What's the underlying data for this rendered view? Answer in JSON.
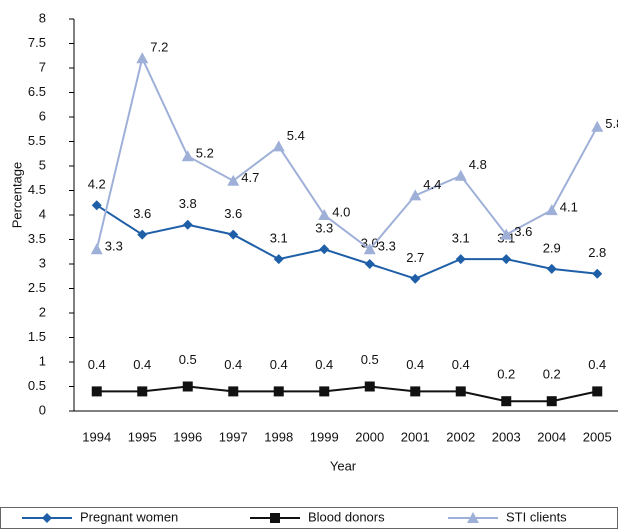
{
  "chart_data": {
    "type": "line",
    "x_label": "Year",
    "y_label": "Percentage",
    "categories": [
      "1994",
      "1995",
      "1996",
      "1997",
      "1998",
      "1999",
      "2000",
      "2001",
      "2002",
      "2003",
      "2004",
      "2005"
    ],
    "ylim": [
      0,
      8
    ],
    "yticks": [
      0,
      0.5,
      1,
      1.5,
      2,
      2.5,
      3,
      3.5,
      4,
      4.5,
      5,
      5.5,
      6,
      6.5,
      7,
      7.5,
      8
    ],
    "grid": false,
    "series": [
      {
        "name": "Pregnant women",
        "color": "#1f5fa8",
        "marker": "diamond",
        "values": [
          4.2,
          3.6,
          3.8,
          3.6,
          3.1,
          3.3,
          3.0,
          2.7,
          3.1,
          3.1,
          2.9,
          2.8
        ],
        "value_labels": [
          "4.2",
          "3.6",
          "3.8",
          "3.6",
          "3.1",
          "3.3",
          "3.0",
          "2.7",
          "3.1",
          "3.1",
          "2.9",
          "2.8"
        ]
      },
      {
        "name": "Blood donors",
        "color": "#111111",
        "marker": "square",
        "values": [
          0.4,
          0.4,
          0.5,
          0.4,
          0.4,
          0.4,
          0.5,
          0.4,
          0.4,
          0.2,
          0.2,
          0.4
        ],
        "value_labels": [
          "0.4",
          "0.4",
          "0.5",
          "0.4",
          "0.4",
          "0.4",
          "0.5",
          "0.4",
          "0.4",
          "0.2",
          "0.2",
          "0.4"
        ]
      },
      {
        "name": "STI clients",
        "color": "#9fb0d8",
        "marker": "triangle",
        "values": [
          3.3,
          7.2,
          5.2,
          4.7,
          5.4,
          4.0,
          3.3,
          4.4,
          4.8,
          3.6,
          4.1,
          5.8
        ],
        "value_labels": [
          "3.3",
          "7.2",
          "5.2",
          "4.7",
          "5.4",
          "4.0",
          "3.3",
          "4.4",
          "4.8",
          "3.6",
          "4.1",
          "5.8"
        ]
      }
    ]
  }
}
